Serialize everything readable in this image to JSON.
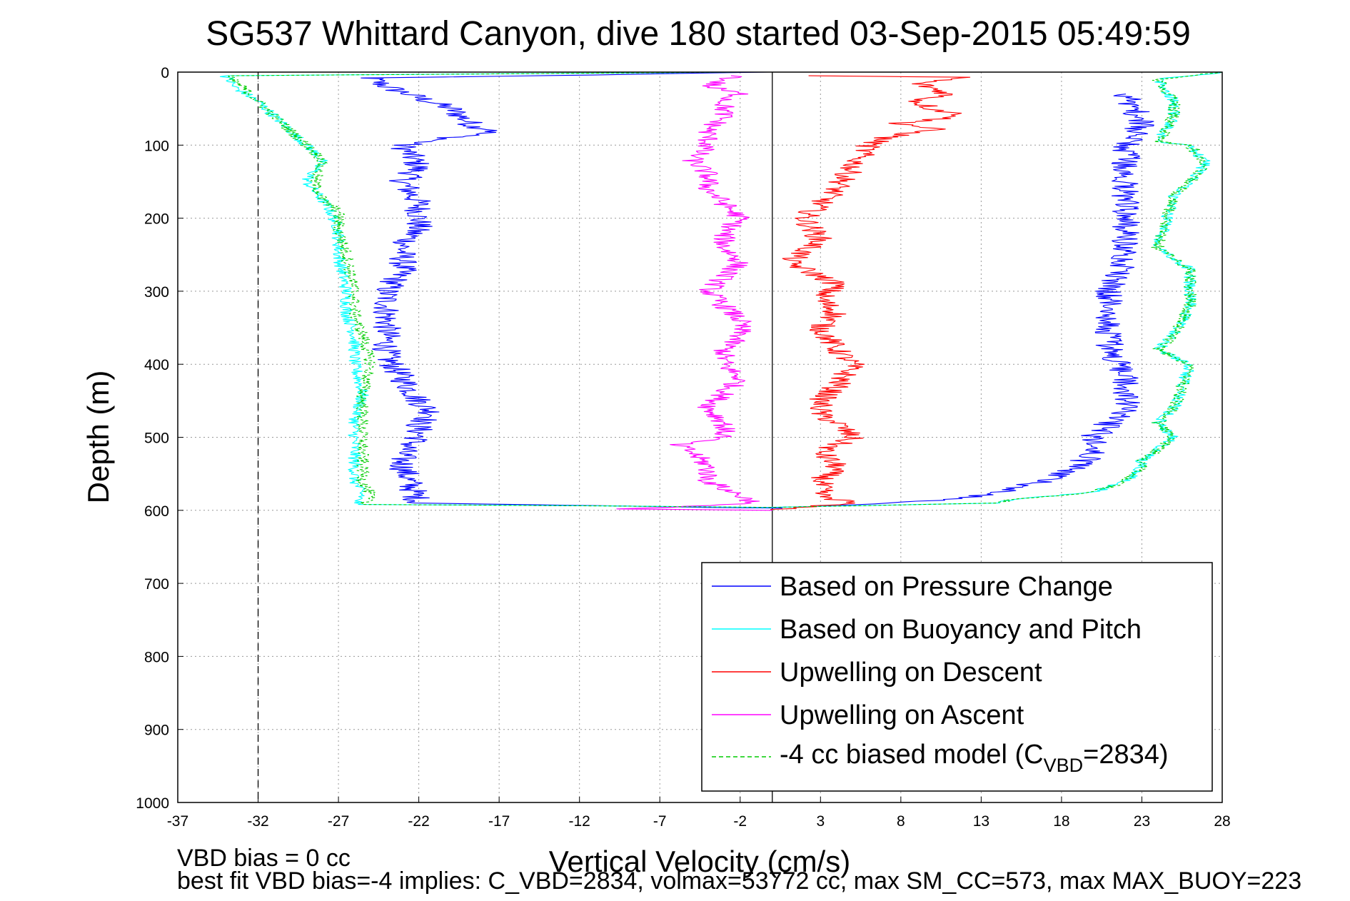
{
  "chart_data": {
    "type": "line",
    "title": "SG537 Whittard Canyon, dive 180 started 03-Sep-2015 05:49:59",
    "xlabel": "Vertical Velocity (cm/s)",
    "ylabel": "Depth (m)",
    "xlim": [
      -37,
      28
    ],
    "ylim": [
      0,
      1000
    ],
    "y_reversed": true,
    "x_ticks": [
      -37,
      -32,
      -27,
      -22,
      -17,
      -12,
      -7,
      -2,
      3,
      8,
      13,
      18,
      23,
      28
    ],
    "y_ticks": [
      0,
      100,
      200,
      300,
      400,
      500,
      600,
      700,
      800,
      900,
      1000
    ],
    "grid": true,
    "legend_position": "bottom-right",
    "reference_lines": [
      {
        "x": -32,
        "style": "dashed",
        "color": "#000000"
      },
      {
        "x": 0,
        "style": "solid",
        "color": "#000000"
      }
    ],
    "legend": [
      {
        "label": "Based on Pressure Change",
        "color": "#0000ff",
        "style": "solid"
      },
      {
        "label": "Based on Buoyancy and Pitch",
        "color": "#00ffff",
        "style": "solid"
      },
      {
        "label": "Upwelling on Descent",
        "color": "#ff0000",
        "style": "solid"
      },
      {
        "label": "Upwelling on Ascent",
        "color": "#ff00ff",
        "style": "solid"
      },
      {
        "label_main": "-4 cc biased model (C",
        "label_sub": "VBD",
        "label_tail": "=2834)",
        "color": "#00cc00",
        "style": "dashed"
      }
    ],
    "series": [
      {
        "name": "Based on Pressure Change",
        "color": "#0000ff",
        "noise": 0.9,
        "x": [
          -0.5,
          -12,
          -25,
          -24,
          -20,
          -18.5,
          -17,
          -20,
          -23,
          -22,
          -23,
          -22,
          -22,
          -23,
          -23,
          -24,
          -24,
          -24,
          -24,
          -23,
          -22,
          -21,
          -22,
          -22,
          -23,
          -23,
          -22,
          -10,
          0,
          8,
          13,
          17,
          19,
          20,
          20,
          21,
          22,
          22,
          21,
          21,
          21,
          22,
          22,
          22,
          22,
          22,
          22,
          22,
          23,
          22
        ],
        "y": [
          0,
          4,
          8,
          20,
          50,
          75,
          80,
          90,
          100,
          130,
          150,
          180,
          210,
          240,
          270,
          300,
          330,
          360,
          390,
          420,
          450,
          470,
          480,
          500,
          520,
          540,
          590,
          594,
          597,
          590,
          580,
          560,
          540,
          520,
          500,
          480,
          460,
          420,
          380,
          340,
          300,
          260,
          220,
          200,
          180,
          160,
          130,
          100,
          70,
          30
        ]
      },
      {
        "name": "Based on Buoyancy and Pitch",
        "color": "#00ffff",
        "noise": 0.4,
        "x": [
          -2,
          -34,
          -33.5,
          -32,
          -31,
          -30,
          -29,
          -28,
          -29,
          -28,
          -27.5,
          -27,
          -27,
          -26.5,
          -26.5,
          -26,
          -26,
          -25.5,
          -26,
          -26,
          -26,
          -25.5,
          -26,
          -10,
          0,
          14,
          15,
          20,
          22,
          23,
          23,
          23.5,
          25,
          24,
          25,
          25.5,
          26,
          24,
          25,
          25.5,
          26,
          26,
          24,
          25,
          26,
          27,
          26,
          24,
          25,
          25,
          24,
          28
        ],
        "y": [
          0,
          5,
          20,
          40,
          60,
          80,
          100,
          120,
          150,
          175,
          190,
          215,
          250,
          300,
          330,
          360,
          400,
          440,
          480,
          520,
          560,
          580,
          592,
          594,
          596,
          590,
          585,
          575,
          560,
          540,
          530,
          525,
          500,
          480,
          460,
          430,
          400,
          380,
          360,
          340,
          320,
          270,
          240,
          170,
          150,
          125,
          100,
          95,
          60,
          40,
          10,
          0
        ]
      },
      {
        "name": "Upwelling on Descent",
        "color": "#ff0000",
        "noise": 0.8,
        "x": [
          2,
          12,
          9,
          11,
          9,
          10,
          12,
          8,
          10,
          7,
          6,
          5,
          4,
          3,
          2,
          3,
          1,
          4,
          3,
          4,
          3,
          4,
          5,
          4,
          3,
          3,
          4,
          5,
          3,
          4,
          3,
          3,
          5,
          2,
          0
        ],
        "y": [
          5,
          7,
          15,
          30,
          40,
          50,
          60,
          70,
          78,
          90,
          100,
          130,
          160,
          180,
          200,
          230,
          260,
          290,
          310,
          330,
          350,
          380,
          400,
          430,
          450,
          470,
          480,
          500,
          520,
          540,
          560,
          580,
          590,
          595,
          600
        ]
      },
      {
        "name": "Upwelling on Ascent",
        "color": "#ff00ff",
        "noise": 0.7,
        "x": [
          -2,
          -3,
          -4,
          -2,
          -3,
          -3,
          -3,
          -4,
          -4,
          -5,
          -4,
          -4,
          -3,
          -2,
          -3,
          -3,
          -2,
          -3,
          -4,
          -3,
          -2,
          -2,
          -3,
          -3,
          -2,
          -3,
          -4,
          -3,
          -3,
          -6,
          -5,
          -4,
          -4,
          -3,
          -2,
          -1,
          -9,
          0
        ],
        "y": [
          5,
          10,
          20,
          30,
          40,
          50,
          60,
          80,
          100,
          120,
          140,
          160,
          180,
          200,
          220,
          240,
          260,
          280,
          300,
          320,
          340,
          360,
          380,
          400,
          420,
          440,
          460,
          480,
          500,
          510,
          520,
          540,
          560,
          570,
          580,
          590,
          598,
          600
        ]
      },
      {
        "name": "-4 cc biased model",
        "color": "#00cc00",
        "dashed": true,
        "noise": 0.4,
        "x": [
          -2,
          -34,
          -33,
          -32,
          -31,
          -30,
          -29,
          -28,
          -28.5,
          -28,
          -27,
          -27,
          -26.5,
          -26,
          -26,
          -25.5,
          -25,
          -25.5,
          -25.5,
          -25.5,
          -25.5,
          -25,
          -25.5,
          -10,
          0,
          14,
          15,
          20,
          22,
          23,
          23,
          23.5,
          25,
          24,
          25,
          25.5,
          26,
          24,
          25,
          25.5,
          26,
          26,
          24,
          25,
          26,
          27,
          26,
          24,
          25,
          25,
          24,
          28
        ],
        "y": [
          0,
          5,
          20,
          40,
          60,
          80,
          100,
          120,
          150,
          175,
          190,
          215,
          250,
          300,
          330,
          360,
          400,
          440,
          480,
          520,
          560,
          580,
          592,
          594,
          596,
          590,
          585,
          575,
          560,
          540,
          530,
          525,
          500,
          480,
          460,
          430,
          400,
          380,
          360,
          340,
          320,
          270,
          240,
          170,
          150,
          125,
          100,
          95,
          60,
          40,
          10,
          0
        ]
      }
    ]
  },
  "footer": {
    "line1": "VBD bias = 0 cc",
    "line2": "best fit VBD bias=-4 implies: C_VBD=2834, volmax=53772 cc, max SM_CC=573, max MAX_BUOY=223"
  }
}
